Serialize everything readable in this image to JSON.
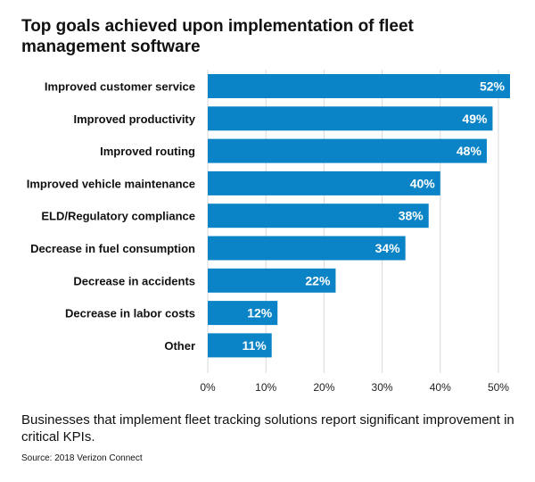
{
  "chart_data": {
    "type": "bar",
    "orientation": "horizontal",
    "title": "Top goals achieved upon implementation of fleet management software",
    "categories": [
      "Improved customer service",
      "Improved productivity",
      "Improved routing",
      "Improved vehicle maintenance",
      "ELD/Regulatory compliance",
      "Decrease in fuel consumption",
      "Decrease in accidents",
      "Decrease in labor costs",
      "Other"
    ],
    "values": [
      52,
      49,
      48,
      40,
      38,
      34,
      22,
      12,
      11
    ],
    "value_labels": [
      "52%",
      "49%",
      "48%",
      "40%",
      "38%",
      "34%",
      "22%",
      "12%",
      "11%"
    ],
    "x_ticks": [
      0,
      10,
      20,
      30,
      40,
      50
    ],
    "x_tick_labels": [
      "0%",
      "10%",
      "20%",
      "30%",
      "40%",
      "50%"
    ],
    "xlim": [
      0,
      52
    ],
    "xlabel": "",
    "ylabel": "",
    "grid": "vertical",
    "legend": "none",
    "bar_color": "#0a84c6",
    "grid_color": "#d9d9d9"
  },
  "caption": "Businesses that implement fleet tracking solutions report significant improvement in critical KPIs.",
  "source": "Source: 2018 Verizon Connect"
}
